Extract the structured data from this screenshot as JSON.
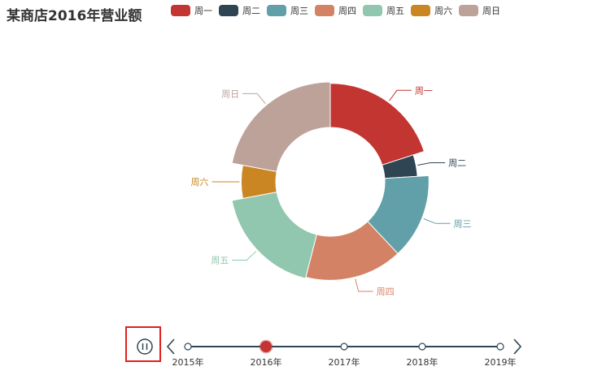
{
  "colors": [
    "#c23531",
    "#2f4554",
    "#61a0a8",
    "#d48265",
    "#91c7ae",
    "#ca8622",
    "#bda29a"
  ],
  "chart_data": {
    "type": "pie",
    "variant": "rose-donut",
    "title": "某商店2016年营业额",
    "categories": [
      "周一",
      "周二",
      "周三",
      "周四",
      "周五",
      "周六",
      "周日"
    ],
    "values": [
      20,
      4,
      14,
      16,
      18,
      6,
      22
    ],
    "radii_relative": [
      0.97,
      0.72,
      0.97,
      0.97,
      1.0,
      0.76,
      1.0
    ],
    "legend_position": "top",
    "timeline": {
      "labels": [
        "2015年",
        "2016年",
        "2017年",
        "2018年",
        "2019年"
      ],
      "current_index": 1,
      "playing": true
    }
  }
}
